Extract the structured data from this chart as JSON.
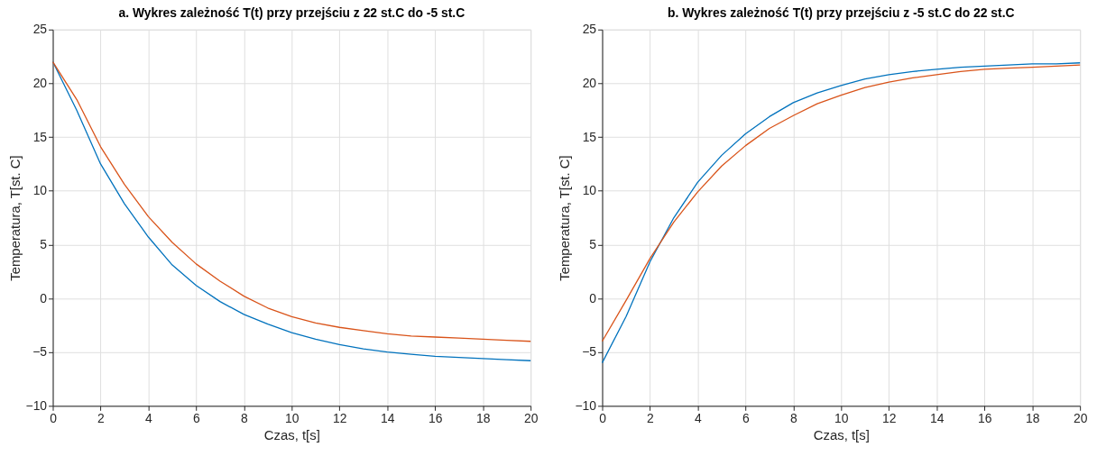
{
  "chart_data": [
    {
      "type": "line",
      "title": "a. Wykres zależność T(t) przy przejściu z 22 st.C do -5 st.C",
      "xlabel": "Czas, t[s]",
      "ylabel": "Temperatura, T[st. C]",
      "x": [
        0,
        1,
        2,
        3,
        4,
        5,
        6,
        7,
        8,
        9,
        10,
        11,
        12,
        13,
        14,
        15,
        16,
        17,
        18,
        19,
        20
      ],
      "series": [
        {
          "color": "#0072bd",
          "values": [
            22,
            17.5,
            12.5,
            8.8,
            5.7,
            3.1,
            1.2,
            -0.3,
            -1.5,
            -2.4,
            -3.2,
            -3.8,
            -4.3,
            -4.7,
            -5.0,
            -5.2,
            -5.4,
            -5.5,
            -5.6,
            -5.7,
            -5.8
          ]
        },
        {
          "color": "#d95319",
          "values": [
            22,
            18.5,
            14.1,
            10.6,
            7.6,
            5.2,
            3.2,
            1.6,
            0.2,
            -0.9,
            -1.7,
            -2.3,
            -2.7,
            -3.0,
            -3.3,
            -3.5,
            -3.6,
            -3.7,
            -3.8,
            -3.9,
            -4.0
          ]
        }
      ],
      "xlim": [
        0,
        20
      ],
      "xticks": [
        0,
        2,
        4,
        6,
        8,
        10,
        12,
        14,
        16,
        18,
        20
      ],
      "ylim": [
        -10,
        25
      ],
      "yticks": [
        -10,
        -5,
        0,
        5,
        10,
        15,
        20,
        25
      ],
      "grid": true,
      "legend": false
    },
    {
      "type": "line",
      "title": "b. Wykres zależność T(t) przy przejściu z -5 st.C do 22 st.C",
      "xlabel": "Czas, t[s]",
      "ylabel": "Temperatura, T[st. C]",
      "x": [
        0,
        1,
        2,
        3,
        4,
        5,
        6,
        7,
        8,
        9,
        10,
        11,
        12,
        13,
        14,
        15,
        16,
        17,
        18,
        19,
        20
      ],
      "series": [
        {
          "color": "#0072bd",
          "values": [
            -6,
            -1.7,
            3.4,
            7.5,
            10.8,
            13.3,
            15.3,
            16.9,
            18.2,
            19.1,
            19.8,
            20.4,
            20.8,
            21.1,
            21.3,
            21.5,
            21.6,
            21.7,
            21.8,
            21.8,
            21.9
          ]
        },
        {
          "color": "#d95319",
          "values": [
            -4,
            -0.2,
            3.7,
            7.1,
            9.9,
            12.3,
            14.2,
            15.8,
            17.0,
            18.1,
            18.9,
            19.6,
            20.1,
            20.5,
            20.8,
            21.1,
            21.3,
            21.4,
            21.5,
            21.6,
            21.7
          ]
        }
      ],
      "xlim": [
        0,
        20
      ],
      "xticks": [
        0,
        2,
        4,
        6,
        8,
        10,
        12,
        14,
        16,
        18,
        20
      ],
      "ylim": [
        -10,
        25
      ],
      "yticks": [
        -10,
        -5,
        0,
        5,
        10,
        15,
        20,
        25
      ],
      "grid": true,
      "legend": false
    }
  ]
}
